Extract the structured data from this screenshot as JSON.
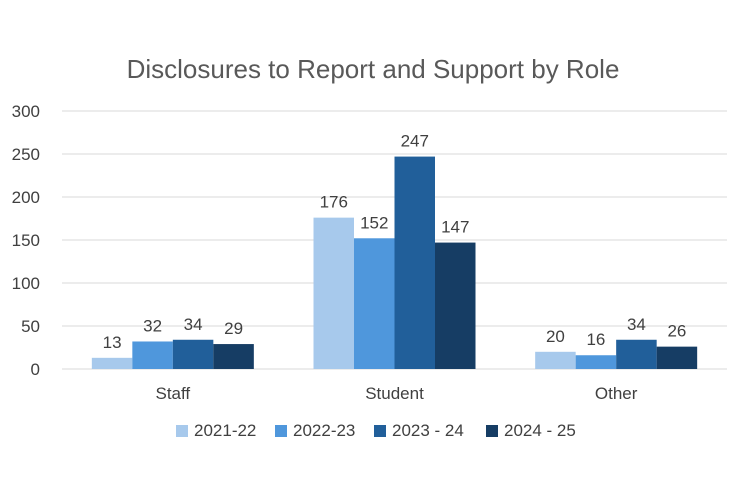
{
  "chart_data": {
    "type": "bar",
    "title": "Disclosures to Report and Support by Role",
    "xlabel": "",
    "ylabel": "",
    "categories": [
      "Staff",
      "Student",
      "Other"
    ],
    "series": [
      {
        "name": "2021-22",
        "values": [
          13,
          176,
          20
        ],
        "color": "#a7c9ec"
      },
      {
        "name": "2022-23",
        "values": [
          32,
          152,
          16
        ],
        "color": "#4f97dc"
      },
      {
        "name": "2023 - 24",
        "values": [
          34,
          247,
          34
        ],
        "color": "#215f9a"
      },
      {
        "name": "2024 - 25",
        "values": [
          29,
          147,
          26
        ],
        "color": "#163d64"
      }
    ],
    "ylim": [
      0,
      300
    ],
    "yticks": [
      0,
      50,
      100,
      150,
      200,
      250,
      300
    ],
    "grid": true,
    "legend": "bottom",
    "data_labels": true
  }
}
